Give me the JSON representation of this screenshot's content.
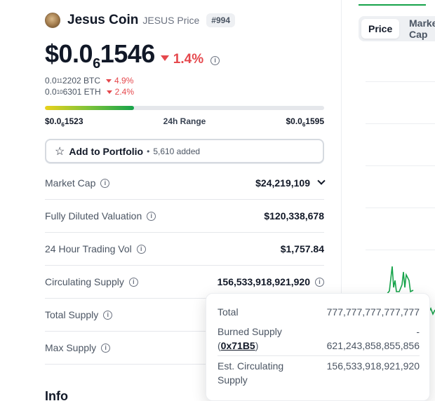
{
  "coin": {
    "name": "Jesus Coin",
    "symbol_label": "JESUS Price",
    "rank": "#994"
  },
  "price": {
    "prefix": "$0.0",
    "zero_count": "6",
    "digits": "1546",
    "change": "1.4%"
  },
  "pairs": [
    {
      "prefix": "0.0",
      "zeros": "11",
      "digits": "2202",
      "unit": "BTC",
      "change": "4.9%"
    },
    {
      "prefix": "0.0",
      "zeros": "10",
      "digits": "6301",
      "unit": "ETH",
      "change": "2.4%"
    }
  ],
  "range": {
    "low_prefix": "$0.0",
    "low_zeros": "6",
    "low_digits": "1523",
    "label": "24h Range",
    "high_prefix": "$0.0",
    "high_zeros": "6",
    "high_digits": "1595",
    "position": 0.32
  },
  "portfolio": {
    "label": "Add to Portfolio",
    "added": "5,610 added"
  },
  "stats": [
    {
      "label": "Market Cap",
      "value": "$24,219,109"
    },
    {
      "label": "Fully Diluted Valuation",
      "value": "$120,338,678"
    },
    {
      "label": "24 Hour Trading Vol",
      "value": "$1,757.84"
    },
    {
      "label": "Circulating Supply",
      "value": "156,533,918,921,920"
    },
    {
      "label": "Total Supply",
      "value": ""
    },
    {
      "label": "Max Supply",
      "value": ""
    }
  ],
  "info_heading": "Info",
  "chart_tabs": [
    "Price",
    "Market Cap"
  ],
  "tooltip": {
    "total_label": "Total",
    "total_value": "777,777,777,777,777",
    "burned_label": "Burned Supply",
    "burned_link": "0x71B5",
    "burned_value_sign": "-",
    "burned_value": "621,243,858,855,856",
    "est_label_1": "Est. Circulating",
    "est_label_2": "Supply",
    "est_value": "156,533,918,921,920"
  },
  "colors": {
    "negative": "#e5484d",
    "accent_green": "#16a34a"
  },
  "icons": [
    "info-icon",
    "star-icon",
    "chevron-down-icon",
    "triangle-down-icon"
  ]
}
